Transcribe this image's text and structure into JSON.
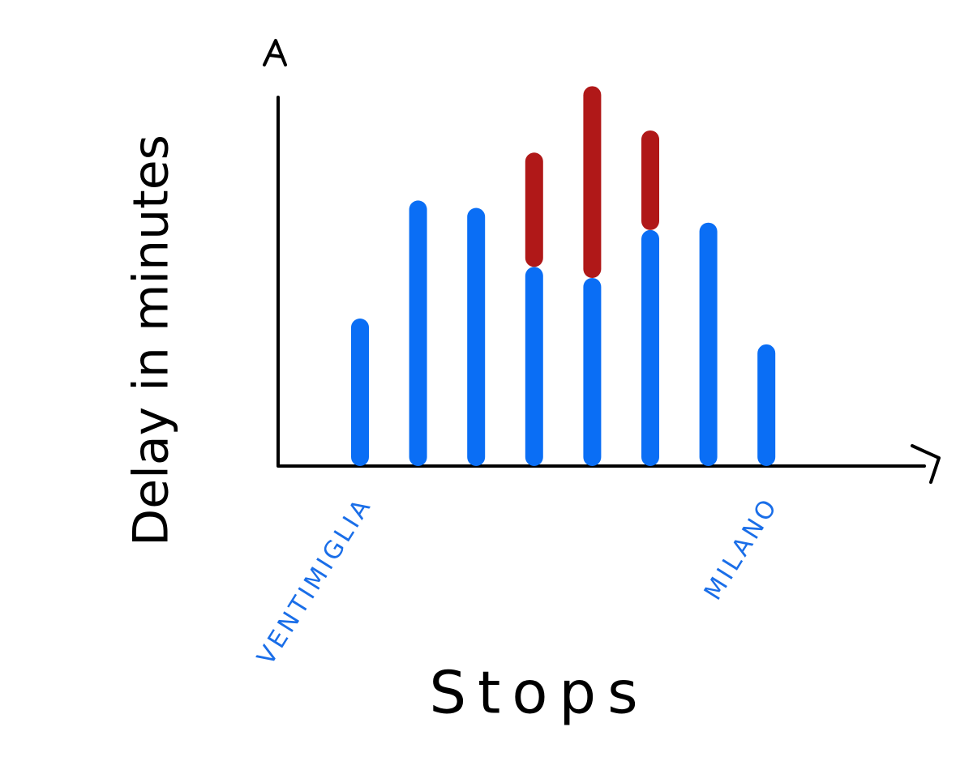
{
  "chart_data": {
    "type": "bar",
    "stacked": true,
    "y_label": "Delay in minutes",
    "x_label": "Stops",
    "categories": [
      "VENTIMIGLIA",
      null,
      null,
      null,
      null,
      null,
      null,
      "MILANO"
    ],
    "series": [
      {
        "color": "#0a6ef5",
        "values": [
          40,
          72,
          70,
          54,
          51,
          64,
          66,
          33
        ]
      },
      {
        "color": "#b01818",
        "values": [
          0,
          0,
          0,
          31,
          52,
          27,
          0,
          0
        ]
      }
    ],
    "ylim": [
      0,
      100
    ],
    "category_color": "#1a6ee8"
  }
}
